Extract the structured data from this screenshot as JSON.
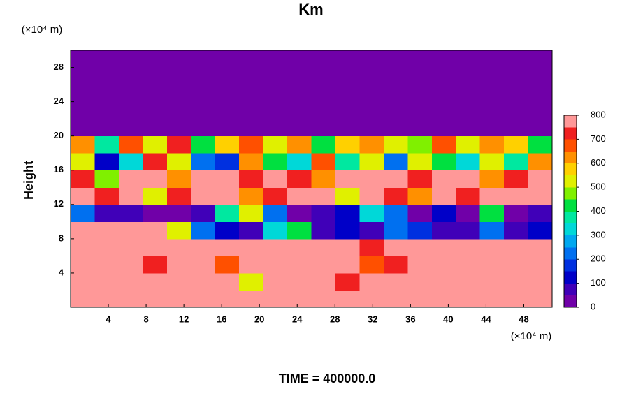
{
  "chart_data": {
    "type": "heatmap",
    "title": "Km",
    "ylabel": "Height",
    "y_unit": "(×10⁴ m)",
    "x_unit": "(×10⁴ m)",
    "footer": "TIME = 400000.0",
    "xlim": [
      0,
      51
    ],
    "xticks": [
      4,
      8,
      12,
      16,
      20,
      24,
      28,
      32,
      36,
      40,
      44,
      48
    ],
    "ylim": [
      0,
      30
    ],
    "yticks": [
      4,
      8,
      12,
      16,
      20,
      24,
      28
    ],
    "zlim": [
      0,
      800
    ],
    "zticks": [
      0,
      100,
      200,
      300,
      400,
      500,
      600,
      700,
      800
    ],
    "colors": [
      "#7000a8",
      "#4000b8",
      "#0000c8",
      "#0030e0",
      "#0070f0",
      "#00a8f0",
      "#00d8d8",
      "#00e8a0",
      "#00e040",
      "#80f000",
      "#e0f000",
      "#ffd000",
      "#ff9000",
      "#ff5000",
      "#f02020",
      "#ff9898"
    ],
    "z": [
      [
        800,
        800,
        800,
        800,
        800,
        800,
        800,
        800,
        800,
        800,
        800,
        750,
        800,
        800,
        800,
        800,
        800,
        800,
        800,
        800
      ],
      [
        800,
        800,
        800,
        800,
        800,
        800,
        750,
        500,
        800,
        800,
        800,
        700,
        800,
        800,
        800,
        800,
        750,
        800,
        750,
        800
      ],
      [
        800,
        800,
        750,
        700,
        800,
        800,
        650,
        800,
        800,
        800,
        800,
        800,
        650,
        700,
        800,
        800,
        800,
        800,
        750,
        800
      ],
      [
        800,
        800,
        800,
        800,
        750,
        800,
        800,
        800,
        800,
        800,
        800,
        800,
        700,
        800,
        800,
        800,
        800,
        800,
        750,
        800
      ],
      [
        750,
        800,
        800,
        800,
        500,
        200,
        100,
        50,
        300,
        400,
        50,
        100,
        50,
        200,
        150,
        50,
        50,
        200,
        50,
        100
      ],
      [
        200,
        50,
        50,
        0,
        0,
        50,
        350,
        500,
        200,
        0,
        50,
        100,
        300,
        200,
        0,
        100,
        0,
        400,
        0,
        50
      ],
      [
        800,
        700,
        800,
        500,
        700,
        800,
        750,
        600,
        700,
        800,
        750,
        500,
        800,
        700,
        600,
        800,
        700,
        800,
        750,
        800
      ],
      [
        700,
        450,
        800,
        750,
        600,
        800,
        800,
        700,
        800,
        700,
        600,
        800,
        750,
        800,
        700,
        750,
        800,
        600,
        700,
        800
      ],
      [
        500,
        100,
        300,
        700,
        500,
        200,
        150,
        600,
        400,
        300,
        650,
        350,
        500,
        200,
        500,
        400,
        300,
        500,
        350,
        600
      ],
      [
        600,
        350,
        650,
        500,
        700,
        400,
        550,
        650,
        500,
        600,
        400,
        550,
        600,
        500,
        450,
        650,
        500,
        600,
        550,
        400
      ],
      [
        0,
        0,
        0,
        0,
        0,
        0,
        0,
        0,
        0,
        0,
        0,
        0,
        0,
        0,
        0,
        0,
        0,
        0,
        0,
        0
      ],
      [
        0,
        0,
        0,
        0,
        0,
        0,
        0,
        0,
        0,
        0,
        0,
        0,
        0,
        0,
        0,
        0,
        0,
        0,
        0,
        0
      ],
      [
        0,
        0,
        0,
        0,
        0,
        0,
        0,
        0,
        0,
        0,
        0,
        0,
        0,
        0,
        0,
        0,
        0,
        0,
        0,
        0
      ],
      [
        0,
        0,
        0,
        0,
        0,
        0,
        0,
        0,
        0,
        0,
        0,
        0,
        0,
        0,
        0,
        0,
        0,
        0,
        0,
        0
      ],
      [
        0,
        0,
        0,
        0,
        0,
        0,
        0,
        0,
        0,
        0,
        0,
        0,
        0,
        0,
        0,
        0,
        0,
        0,
        0,
        0
      ]
    ]
  }
}
